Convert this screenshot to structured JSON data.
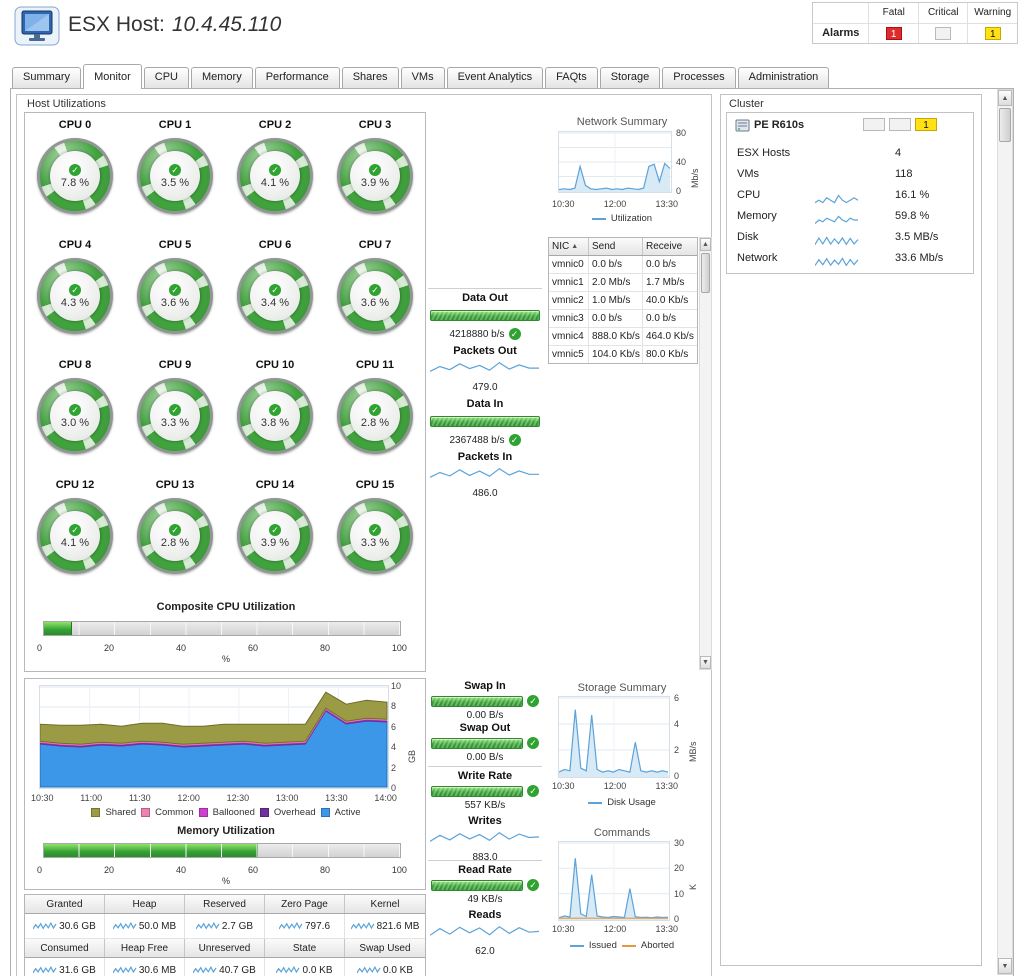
{
  "header": {
    "title_prefix": "ESX Host:",
    "title_value": "10.4.45.110",
    "alarms": {
      "label": "Alarms",
      "columns": [
        "Fatal",
        "Critical",
        "Warning"
      ],
      "counts": {
        "fatal": "1",
        "critical": "",
        "warning": "1"
      },
      "colors": {
        "fatal": "#dd2c2c",
        "critical": "#f2f2f2",
        "warning": "#ffe115"
      }
    }
  },
  "tabs": {
    "active": "Monitor",
    "items": [
      "Summary",
      "Monitor",
      "CPU",
      "Memory",
      "Performance",
      "Shares",
      "VMs",
      "Event Analytics",
      "FAQts",
      "Storage",
      "Processes",
      "Administration"
    ]
  },
  "host_utilizations": {
    "title": "Host Utilizations",
    "cpus": [
      {
        "label": "CPU 0",
        "value": "7.8 %"
      },
      {
        "label": "CPU 1",
        "value": "3.5 %"
      },
      {
        "label": "CPU 2",
        "value": "4.1 %"
      },
      {
        "label": "CPU 3",
        "value": "3.9 %"
      },
      {
        "label": "CPU 4",
        "value": "4.3 %"
      },
      {
        "label": "CPU 5",
        "value": "3.6 %"
      },
      {
        "label": "CPU 6",
        "value": "3.4 %"
      },
      {
        "label": "CPU 7",
        "value": "3.6 %"
      },
      {
        "label": "CPU 8",
        "value": "3.0 %"
      },
      {
        "label": "CPU 9",
        "value": "3.3 %"
      },
      {
        "label": "CPU 10",
        "value": "3.8 %"
      },
      {
        "label": "CPU 11",
        "value": "2.8 %"
      },
      {
        "label": "CPU 12",
        "value": "4.1 %"
      },
      {
        "label": "CPU 13",
        "value": "2.8 %"
      },
      {
        "label": "CPU 14",
        "value": "3.9 %"
      },
      {
        "label": "CPU 15",
        "value": "3.3 %"
      }
    ],
    "composite_cpu": {
      "title": "Composite CPU Utilization",
      "percent": 8,
      "axis": [
        0,
        20,
        40,
        60,
        80,
        100
      ],
      "unit": "%"
    },
    "memory_utilization": {
      "title": "Memory Utilization",
      "percent": 60,
      "axis": [
        0,
        20,
        40,
        60,
        80,
        100
      ],
      "unit": "%"
    },
    "gauges": [
      {
        "label": "Data Out",
        "value": "4218880 b/s"
      },
      {
        "label": "Packets Out",
        "value": "479.0"
      },
      {
        "label": "Data In",
        "value": "2367488 b/s"
      },
      {
        "label": "Packets In",
        "value": "486.0"
      },
      {
        "label": "Swap In",
        "value": "0.00 B/s"
      },
      {
        "label": "Swap Out",
        "value": "0.00 B/s"
      },
      {
        "label": "Write Rate",
        "value": "557 KB/s"
      },
      {
        "label": "Writes",
        "value": "883.0"
      },
      {
        "label": "Read Rate",
        "value": "49 KB/s"
      },
      {
        "label": "Reads",
        "value": "62.0"
      }
    ],
    "memory_table": {
      "row1": [
        {
          "label": "Granted",
          "value": "30.6 GB"
        },
        {
          "label": "Heap",
          "value": "50.0 MB"
        },
        {
          "label": "Reserved",
          "value": "2.7 GB"
        },
        {
          "label": "Zero Page",
          "value": "797.6"
        },
        {
          "label": "Kernel",
          "value": "821.6 MB"
        }
      ],
      "row2": [
        {
          "label": "Consumed",
          "value": "31.6 GB"
        },
        {
          "label": "Heap Free",
          "value": "30.6 MB"
        },
        {
          "label": "Unreserved",
          "value": "40.7 GB"
        },
        {
          "label": "State",
          "value": "0.0 KB"
        },
        {
          "label": "Swap Used",
          "value": "0.0 KB"
        }
      ]
    }
  },
  "network_summary": {
    "title": "Network Summary",
    "nic_table": {
      "columns": [
        "NIC",
        "Send",
        "Receive"
      ],
      "rows": [
        {
          "nic": "vmnic0",
          "send": "0.0 b/s",
          "receive": "0.0 b/s"
        },
        {
          "nic": "vmnic1",
          "send": "2.0 Mb/s",
          "receive": "1.7 Mb/s"
        },
        {
          "nic": "vmnic2",
          "send": "1.0 Mb/s",
          "receive": "40.0 Kb/s"
        },
        {
          "nic": "vmnic3",
          "send": "0.0 b/s",
          "receive": "0.0 b/s"
        },
        {
          "nic": "vmnic4",
          "send": "888.0 Kb/s",
          "receive": "464.0 Kb/s"
        },
        {
          "nic": "vmnic5",
          "send": "104.0 Kb/s",
          "receive": "80.0 Kb/s"
        }
      ]
    }
  },
  "storage_summary": {
    "title": "Storage Summary"
  },
  "commands_panel": {
    "title": "Commands"
  },
  "cluster": {
    "title": "Cluster",
    "name": "PE R610s",
    "alarm_counts": [
      "",
      "",
      "1"
    ],
    "chip_colors": [
      "#f2f2f2",
      "#f2f2f2",
      "#ffe115"
    ],
    "rows": [
      {
        "label": "ESX Hosts",
        "value": "4"
      },
      {
        "label": "VMs",
        "value": "118"
      },
      {
        "label": "CPU",
        "value": "16.1 %"
      },
      {
        "label": "Memory",
        "value": "59.8 %"
      },
      {
        "label": "Disk",
        "value": "3.5 MB/s"
      },
      {
        "label": "Network",
        "value": "33.6 Mb/s"
      }
    ]
  },
  "chart_data": {
    "network": {
      "type": "area",
      "ymin": 0,
      "ymax": 80,
      "yticks": [
        0,
        20,
        40,
        60,
        80
      ],
      "ylabels": [
        0,
        40,
        80
      ],
      "ylabel": "Mb/s",
      "xticks": [
        "10:30",
        "12:00",
        "13:30"
      ],
      "series": [
        {
          "name": "Utilization",
          "color": "#5ba3d9",
          "fill": "#d9eaf7",
          "values": [
            2,
            3,
            2,
            4,
            34,
            8,
            3,
            2,
            3,
            4,
            2,
            3,
            2,
            4,
            3,
            2,
            4,
            34,
            37,
            13,
            38,
            31
          ]
        }
      ]
    },
    "storage": {
      "type": "area",
      "ymin": 0,
      "ymax": 6,
      "yticks": [
        0,
        2,
        4,
        6
      ],
      "ylabels": [
        0,
        2,
        4,
        6
      ],
      "ylabel": "MB/s",
      "xticks": [
        "10:30",
        "12:00",
        "13:30"
      ],
      "series": [
        {
          "name": "Disk Usage",
          "color": "#5ba3d9",
          "fill": "#d9eaf7",
          "values": [
            0.3,
            0.5,
            0.4,
            5.1,
            0.6,
            0.4,
            4.7,
            0.5,
            0.3,
            0.4,
            0.3,
            0.5,
            0.4,
            0.3,
            2.6,
            0.4,
            0.3,
            0.4,
            0.3,
            0.4,
            0.3
          ]
        }
      ]
    },
    "commands": {
      "type": "area",
      "ymin": 0,
      "ymax": 30,
      "yticks": [
        0,
        10,
        20,
        30
      ],
      "ylabels": [
        0,
        10,
        20,
        30
      ],
      "ylabel": "K",
      "xticks": [
        "10:30",
        "12:00",
        "13:30"
      ],
      "series": [
        {
          "name": "Issued",
          "color": "#5ba3d9",
          "fill": "#d9eaf7",
          "values": [
            0.5,
            1.2,
            0.8,
            24,
            2,
            1,
            17.5,
            1.2,
            0.8,
            0.6,
            1,
            0.8,
            0.6,
            12,
            0.9,
            0.6,
            0.7,
            0.5,
            0.8,
            0.6,
            0.7
          ]
        },
        {
          "name": "Aborted",
          "color": "#e8973d",
          "values": [
            0.3,
            0.3,
            0.3,
            0.3,
            0.3,
            0.3,
            0.3,
            0.3,
            0.3,
            0.3,
            0.3,
            0.3,
            0.3,
            0.3,
            0.3,
            0.3,
            0.3,
            0.3,
            0.3,
            0.3,
            0.3
          ]
        }
      ]
    },
    "memory_history": {
      "type": "area",
      "stacked": true,
      "ymin": 0,
      "ymax": 10,
      "yticks": [
        0,
        2,
        4,
        6,
        8,
        10
      ],
      "ylabels": [
        0,
        2,
        4,
        6,
        8,
        10
      ],
      "ylabel": "GB",
      "xticks": [
        "10:30",
        "11:00",
        "11:30",
        "12:00",
        "12:30",
        "13:00",
        "13:30",
        "14:00"
      ],
      "series": [
        {
          "name": "Active",
          "color": "#1c6fc4",
          "fill": "#3d97e8",
          "values": [
            4.3,
            4.1,
            4.0,
            4.2,
            4.1,
            4.3,
            4.2,
            4.0,
            4.1,
            4.2,
            4.3,
            4.1,
            4.2,
            4.3,
            7.6,
            6.3,
            6.6,
            6.5
          ]
        },
        {
          "name": "Overhead",
          "color": "#7030a0",
          "fill": "#7030a0",
          "values": [
            0.15,
            0.15,
            0.15,
            0.15,
            0.15,
            0.15,
            0.15,
            0.15,
            0.15,
            0.15,
            0.15,
            0.15,
            0.15,
            0.15,
            0.15,
            0.15,
            0.15,
            0.15
          ]
        },
        {
          "name": "Ballooned",
          "color": "#d040d0",
          "fill": "#d040d0",
          "values": [
            0.05,
            0.05,
            0.05,
            0.05,
            0.05,
            0.05,
            0.05,
            0.05,
            0.05,
            0.05,
            0.05,
            0.05,
            0.05,
            0.05,
            0.05,
            0.05,
            0.05,
            0.05
          ]
        },
        {
          "name": "Common",
          "color": "#f080b0",
          "fill": "#f080b0",
          "values": [
            0.08,
            0.08,
            0.08,
            0.08,
            0.08,
            0.08,
            0.08,
            0.08,
            0.08,
            0.08,
            0.08,
            0.08,
            0.08,
            0.08,
            0.08,
            0.08,
            0.08,
            0.08
          ]
        },
        {
          "name": "Shared",
          "color": "#6f6e2a",
          "fill": "#9b9a45",
          "values": [
            1.7,
            1.8,
            1.9,
            1.8,
            1.7,
            1.8,
            1.9,
            1.8,
            1.7,
            1.8,
            1.7,
            1.9,
            1.8,
            1.7,
            1.6,
            1.7,
            1.8,
            1.7
          ]
        }
      ],
      "legend": [
        {
          "label": "Shared",
          "color": "#9b9a45"
        },
        {
          "label": "Common",
          "color": "#f080b0"
        },
        {
          "label": "Ballooned",
          "color": "#d040d0"
        },
        {
          "label": "Overhead",
          "color": "#7030a0"
        },
        {
          "label": "Active",
          "color": "#3d97e8"
        }
      ]
    },
    "sparklines": {
      "packets_out": {
        "series": [
          {
            "color": "#5ba3d9",
            "values": [
              420,
              510,
              450,
              560,
              470,
              530,
              440,
              580,
              460,
              540,
              480,
              479
            ]
          }
        ]
      },
      "packets_in": {
        "series": [
          {
            "color": "#5ba3d9",
            "values": [
              430,
              520,
              455,
              570,
              465,
              545,
              450,
              590,
              470,
              550,
              485,
              486
            ]
          }
        ]
      },
      "writes": {
        "series": [
          {
            "color": "#5ba3d9",
            "values": [
              700,
              950,
              760,
              1020,
              800,
              980,
              740,
              1060,
              790,
              1000,
              860,
              883
            ]
          }
        ]
      },
      "reads": {
        "series": [
          {
            "color": "#5ba3d9",
            "values": [
              30,
              85,
              40,
              95,
              50,
              90,
              35,
              100,
              45,
              92,
              55,
              62
            ]
          }
        ]
      },
      "cluster_cpu": {
        "series": [
          {
            "color": "#5ba3d9",
            "values": [
              15,
              16,
              15,
              17,
              16,
              15,
              18,
              16,
              15,
              16,
              17,
              16
            ]
          }
        ]
      },
      "cluster_memory": {
        "series": [
          {
            "color": "#5ba3d9",
            "values": [
              58,
              60,
              59,
              61,
              60,
              59,
              62,
              60,
              59,
              61,
              60,
              60
            ]
          }
        ]
      },
      "cluster_disk": {
        "series": [
          {
            "color": "#5ba3d9",
            "values": [
              1.5,
              6,
              2,
              6.5,
              1.8,
              5.5,
              2.2,
              6.2,
              1.6,
              5.8,
              2,
              5
            ]
          }
        ]
      },
      "cluster_network": {
        "series": [
          {
            "color": "#5ba3d9",
            "values": [
              18,
              46,
              22,
              50,
              20,
              44,
              24,
              52,
              19,
              47,
              23,
              45
            ]
          }
        ]
      },
      "cell": {
        "series": [
          {
            "color": "#5ba3d9",
            "values": [
              2,
              6,
              3,
              7,
              2.5,
              6.5,
              3,
              7.5,
              2.8,
              6.8
            ]
          }
        ]
      }
    }
  }
}
